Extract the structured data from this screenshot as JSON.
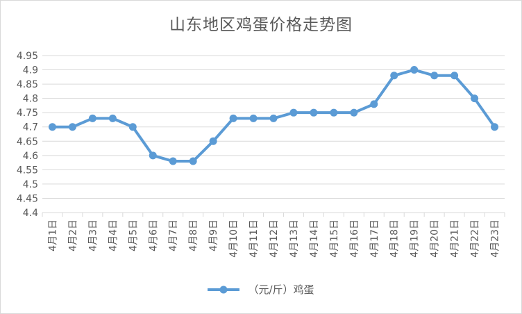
{
  "chart_data": {
    "type": "line",
    "title": "山东地区鸡蛋价格走势图",
    "categories": [
      "4月1日",
      "4月2日",
      "4月3日",
      "4月4日",
      "4月5日",
      "4月6日",
      "4月7日",
      "4月8日",
      "4月9日",
      "4月10日",
      "4月11日",
      "4月12日",
      "4月13日",
      "4月14日",
      "4月15日",
      "4月16日",
      "4月17日",
      "4月18日",
      "4月19日",
      "4月20日",
      "4月21日",
      "4月22日",
      "4月23日"
    ],
    "series": [
      {
        "name": "（元/斤）鸡蛋",
        "values": [
          4.7,
          4.7,
          4.73,
          4.73,
          4.7,
          4.6,
          4.58,
          4.58,
          4.65,
          4.73,
          4.73,
          4.73,
          4.75,
          4.75,
          4.75,
          4.75,
          4.78,
          4.88,
          4.9,
          4.88,
          4.88,
          4.8,
          4.7
        ]
      }
    ],
    "ylim": [
      4.4,
      4.95
    ],
    "yticks": [
      "4.4",
      "4.45",
      "4.5",
      "4.55",
      "4.6",
      "4.65",
      "4.7",
      "4.75",
      "4.8",
      "4.85",
      "4.9",
      "4.95"
    ],
    "grid": true,
    "legend": "bottom",
    "colors": {
      "line": "#5b9bd5",
      "grid": "#d9d9d9",
      "text": "#595959"
    }
  }
}
